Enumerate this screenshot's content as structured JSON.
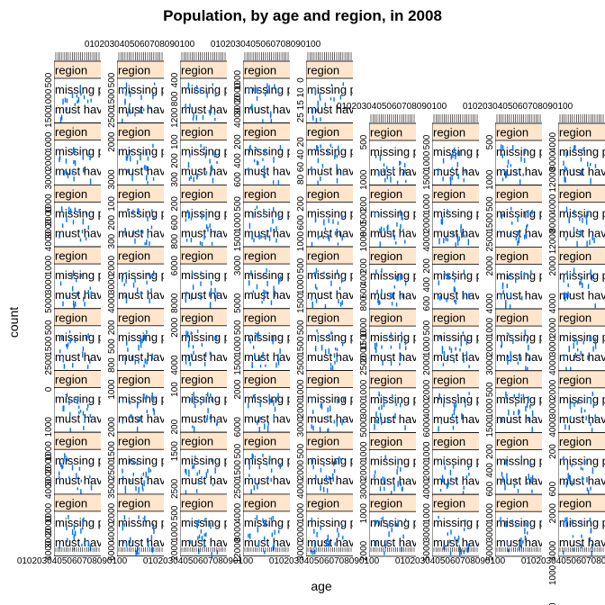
{
  "chart_data": {
    "type": "scatter",
    "title": "Population, by age and region, in 2008",
    "xlabel": "age",
    "ylabel": "count",
    "columns": 9,
    "rows": 8,
    "strip_label": "region",
    "panel_lines": [
      "missing panel",
      "must have"
    ],
    "colors": {
      "strip_fill": "#ffe5cc",
      "points": "#0072ff",
      "frame": "#000000",
      "background": "#ffffff"
    },
    "column_y_ticks": [
      [
        [
          "1500",
          "1000",
          "500"
        ],
        [
          "3000",
          "2000",
          "1000"
        ],
        [
          "4000",
          "3000",
          "2000",
          "1000"
        ],
        [
          "5000",
          "3000",
          "1000"
        ],
        [
          "2500",
          "1500",
          "500"
        ],
        [
          "1000",
          "0"
        ],
        [
          "4000",
          "3000",
          "2000",
          "1000"
        ],
        [
          "4000",
          "3000",
          "2000",
          "1000"
        ]
      ],
      [
        [
          "2500",
          "1500",
          "500"
        ],
        [
          "3000",
          "2000"
        ],
        [
          "300",
          "200",
          "100"
        ],
        [
          "4000",
          "3000",
          "2000"
        ],
        [
          "800",
          "500",
          "200"
        ],
        [
          "2000",
          "1000"
        ],
        [
          "3500",
          "2500",
          "1500"
        ],
        [
          "6000",
          "4000",
          "2000"
        ]
      ],
      [
        [
          "1200",
          "800",
          "400"
        ],
        [
          "300",
          "200",
          "100"
        ],
        [
          "800",
          "600",
          "200"
        ],
        [
          "8000",
          "6000"
        ],
        [
          "4000",
          "2000"
        ],
        [
          "200",
          "100"
        ],
        [
          "2500",
          "1500"
        ],
        [
          "2000",
          "1000",
          "500"
        ]
      ],
      [
        [
          "4000",
          "3000",
          "2000",
          "1000"
        ],
        [
          "600",
          "400",
          "200"
        ],
        [
          "1500",
          "1000",
          "500"
        ],
        [
          "5000",
          "3000"
        ],
        [
          "1500",
          "1000",
          "500"
        ],
        [
          "6000",
          "2000"
        ],
        [
          "2500",
          "1500",
          "500"
        ],
        [
          "12000",
          "8000",
          "4000"
        ]
      ],
      [
        [
          "25",
          "15",
          "10",
          "0"
        ],
        [
          "80",
          "60",
          "40",
          "20"
        ],
        [
          "1000",
          "600",
          "200"
        ],
        [
          "1500",
          "1000",
          "500"
        ],
        [
          "2500",
          "1500",
          "500"
        ],
        [
          "3000",
          "2000",
          "1000"
        ],
        [
          "4000",
          "2000",
          "500"
        ],
        [
          "3000",
          "2000",
          "1000"
        ]
      ],
      [
        [
          "1000",
          "500"
        ],
        [
          "1000",
          "800",
          "500",
          "200"
        ],
        [
          "800",
          "600",
          "400",
          "200"
        ],
        [
          "2500",
          "2000",
          "1500",
          "1000"
        ],
        [
          "5000",
          "3000",
          "1000"
        ],
        [
          "3000",
          "2000",
          "1000"
        ],
        [
          "2000",
          "1000"
        ]
      ],
      [
        [
          "1500",
          "1000",
          "500"
        ],
        [
          "4000",
          "2000",
          "1000"
        ],
        [
          "600",
          "400",
          "200"
        ],
        [
          "2000",
          "1000",
          "500"
        ],
        [
          "6000",
          "4000",
          "2000"
        ],
        [
          "4000",
          "2000",
          "1000"
        ],
        [
          "5000",
          "3000",
          "1000"
        ]
      ],
      [
        [
          "1000",
          "500"
        ],
        [
          "2500",
          "1500",
          "500"
        ],
        [
          "4000",
          "2000"
        ],
        [
          "3000",
          "2000",
          "1000"
        ],
        [
          "1500",
          "1000",
          "500"
        ],
        [
          "600",
          "400",
          "200"
        ],
        [
          "5000",
          "3000",
          "1000"
        ]
      ],
      [
        [
          "12000",
          "8000",
          "4000"
        ],
        [
          "12000",
          "8000",
          "4000"
        ],
        [
          "4000",
          "2000"
        ],
        [
          "4000",
          "3000",
          "2000"
        ],
        [
          "4000",
          "3000",
          "2000"
        ],
        [
          "600",
          "200"
        ],
        [
          "4000",
          "2000"
        ],
        [
          "2000",
          "1000"
        ]
      ]
    ],
    "x_tick_labels": "0102030405060708090100"
  }
}
